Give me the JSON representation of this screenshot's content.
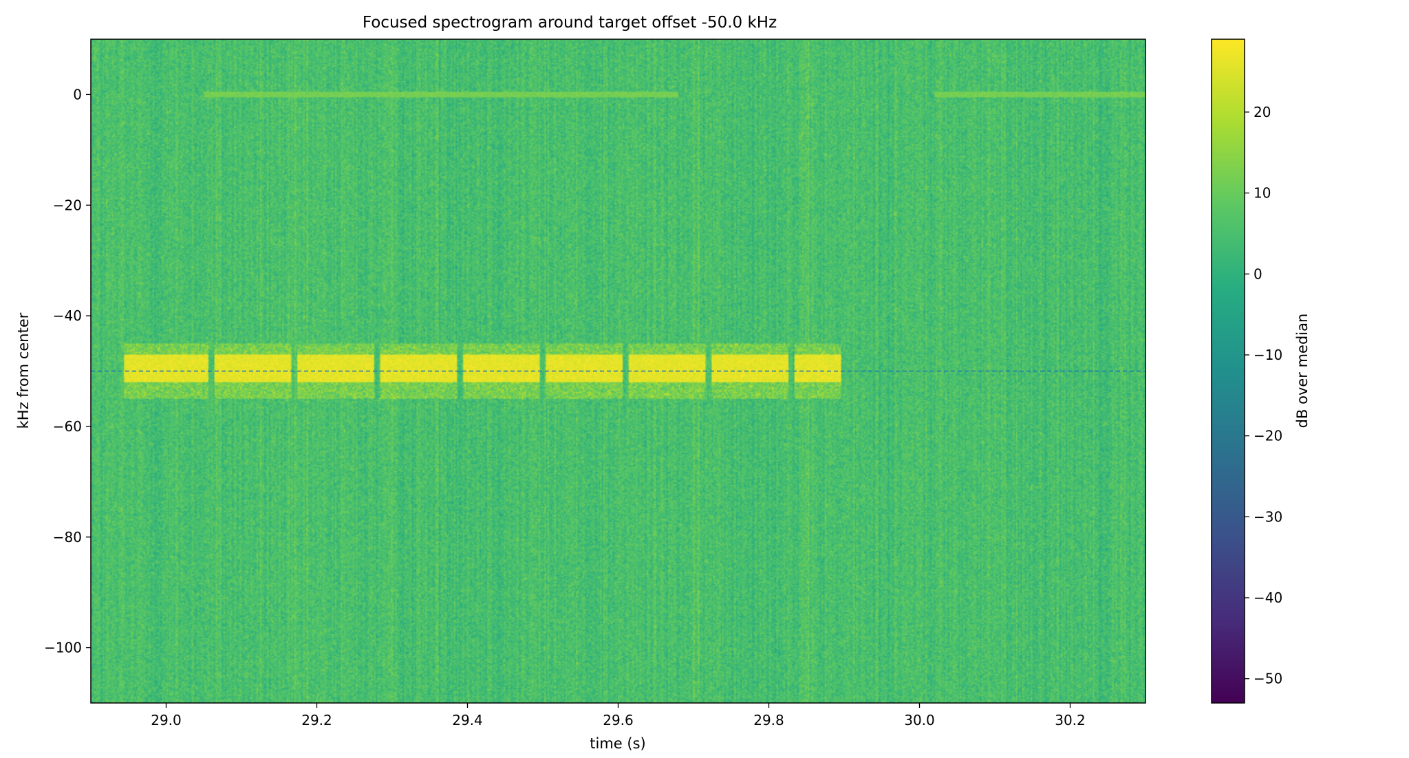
{
  "chart_data": {
    "type": "heatmap",
    "title": "Focused spectrogram around target offset -50.0 kHz",
    "xlabel": "time (s)",
    "ylabel": "kHz from center",
    "xlim": [
      28.9,
      30.3
    ],
    "ylim": [
      -110,
      10
    ],
    "x_ticks": [
      29.0,
      29.2,
      29.4,
      29.6,
      29.8,
      30.0,
      30.2
    ],
    "x_tick_labels": [
      "29.0",
      "29.2",
      "29.4",
      "29.6",
      "29.8",
      "30.0",
      "30.2"
    ],
    "y_ticks": [
      0,
      -20,
      -40,
      -60,
      -80,
      -100
    ],
    "y_tick_labels": [
      "0",
      "−20",
      "−40",
      "−60",
      "−80",
      "−100"
    ],
    "colormap": "viridis",
    "colorbar": {
      "label": "dB over median",
      "range": [
        -53,
        29
      ],
      "ticks": [
        20,
        10,
        0,
        -10,
        -20,
        -30,
        -40,
        -50
      ],
      "tick_labels": [
        "20",
        "10",
        "0",
        "−10",
        "−20",
        "−30",
        "−40",
        "−50"
      ]
    },
    "background_level_db": 5,
    "signal": {
      "center_offset_khz": -50,
      "core_bandwidth_khz": [
        -52,
        -47
      ],
      "sideband_extent_khz": [
        -55,
        -45
      ],
      "start_s": 28.945,
      "end_s": 29.895,
      "peak_level_db": 28,
      "gaps_s": [
        29.06,
        29.17,
        29.28,
        29.39,
        29.5,
        29.61,
        29.72,
        29.83
      ]
    },
    "faint_carrier": {
      "offset_khz": 0,
      "segments_s": [
        [
          29.05,
          29.68
        ],
        [
          30.02,
          30.3
        ]
      ],
      "level_db": 12
    },
    "reference_line": {
      "y_khz": -50,
      "style": "dashed",
      "color": "#1f77b4"
    }
  }
}
